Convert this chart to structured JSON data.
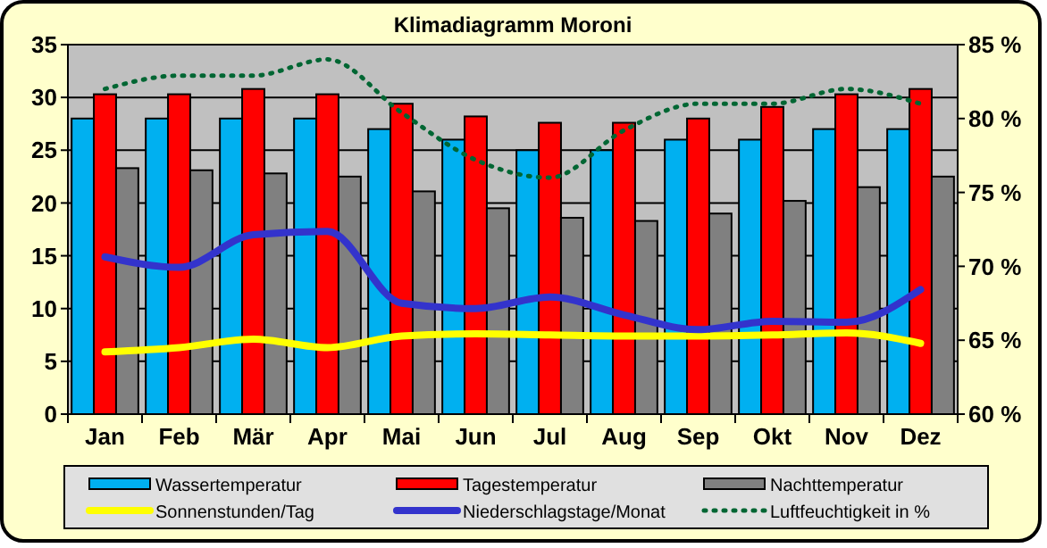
{
  "chart_data": {
    "type": "bar",
    "title": "Klimadiagramm Moroni",
    "categories": [
      "Jan",
      "Feb",
      "Mär",
      "Apr",
      "Mai",
      "Jun",
      "Jul",
      "Aug",
      "Sep",
      "Okt",
      "Nov",
      "Dez"
    ],
    "series": [
      {
        "name": "Wassertemperatur",
        "color": "#00b0f0",
        "values": [
          28,
          28,
          28,
          28,
          27,
          26,
          25,
          25,
          26,
          26,
          27,
          27
        ]
      },
      {
        "name": "Tagestemperatur",
        "color": "#ff0000",
        "values": [
          30.3,
          30.3,
          30.8,
          30.3,
          29.4,
          28.2,
          27.6,
          27.6,
          28.0,
          29.1,
          30.3,
          30.8
        ]
      },
      {
        "name": "Nachttemperatur",
        "color": "#808080",
        "values": [
          23.3,
          23.1,
          22.8,
          22.5,
          21.1,
          19.5,
          18.6,
          18.3,
          19.0,
          20.2,
          21.5,
          22.5
        ]
      },
      {
        "name": "Sonnenstunden/Tag",
        "type": "line",
        "color": "#ffff00",
        "line_style": "solid",
        "values": [
          5.9,
          6.3,
          7.1,
          6.3,
          7.4,
          7.6,
          7.5,
          7.4,
          7.4,
          7.5,
          7.7,
          6.7
        ]
      },
      {
        "name": "Niederschlagstage/Monat",
        "type": "line",
        "color": "#3333cc",
        "line_style": "solid",
        "values": [
          14.9,
          13.9,
          17.0,
          17.3,
          10.5,
          10.0,
          11.1,
          9.4,
          8.0,
          8.8,
          8.7,
          11.8
        ]
      },
      {
        "name": "Luftfeuchtigkeit in %",
        "type": "line",
        "color": "#006633",
        "line_style": "dotted",
        "axis": "y2",
        "values": [
          82.0,
          82.9,
          82.9,
          84.0,
          80.4,
          77.2,
          76.0,
          79.2,
          81.0,
          81.0,
          82.0,
          81.0
        ]
      }
    ],
    "ylim": [
      0,
      35
    ],
    "yticks": [
      0,
      5,
      10,
      15,
      20,
      25,
      30,
      35
    ],
    "y2lim": [
      60,
      85
    ],
    "y2ticks": [
      {
        "value": 60,
        "label": "60 %"
      },
      {
        "value": 65,
        "label": "65 %"
      },
      {
        "value": 70,
        "label": "70 %"
      },
      {
        "value": 75,
        "label": "75 %"
      },
      {
        "value": 80,
        "label": "80 %"
      },
      {
        "value": 85,
        "label": "85 %"
      }
    ],
    "grid": "y",
    "legend": "bottom"
  }
}
